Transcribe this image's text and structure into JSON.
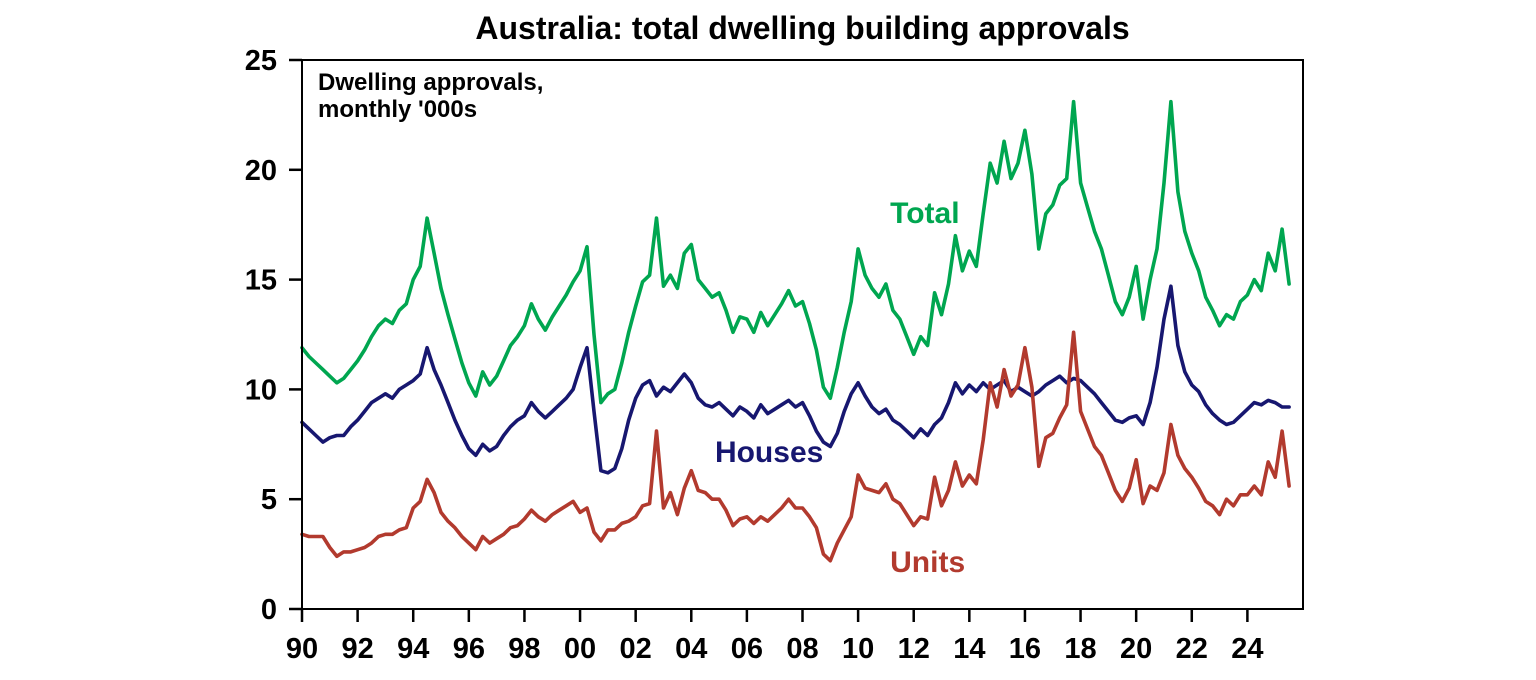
{
  "chart_data": {
    "type": "line",
    "title": "Australia: total dwelling building approvals",
    "annotation_lines": [
      "Dwelling approvals,",
      "monthly '000s"
    ],
    "grid": false,
    "legend_position": "inline-labels",
    "xlim": [
      1990.0,
      2026.0
    ],
    "ylim": [
      0,
      25
    ],
    "y_ticks": [
      0,
      5,
      10,
      15,
      20,
      25
    ],
    "x_ticks": [
      {
        "label": "90",
        "year": 1990
      },
      {
        "label": "92",
        "year": 1992
      },
      {
        "label": "94",
        "year": 1994
      },
      {
        "label": "96",
        "year": 1996
      },
      {
        "label": "98",
        "year": 1998
      },
      {
        "label": "00",
        "year": 2000
      },
      {
        "label": "02",
        "year": 2002
      },
      {
        "label": "04",
        "year": 2004
      },
      {
        "label": "06",
        "year": 2006
      },
      {
        "label": "08",
        "year": 2008
      },
      {
        "label": "10",
        "year": 2010
      },
      {
        "label": "12",
        "year": 2012
      },
      {
        "label": "14",
        "year": 2014
      },
      {
        "label": "16",
        "year": 2016
      },
      {
        "label": "18",
        "year": 2018
      },
      {
        "label": "20",
        "year": 2020
      },
      {
        "label": "22",
        "year": 2022
      },
      {
        "label": "24",
        "year": 2024
      }
    ],
    "x_start": 1990.0,
    "x_step": 0.25,
    "series": [
      {
        "name": "Total",
        "color": "#00A650",
        "label_x": 2012.4,
        "label_y": 18.0,
        "values": [
          11.9,
          11.5,
          11.2,
          10.9,
          10.6,
          10.3,
          10.5,
          10.9,
          11.3,
          11.8,
          12.4,
          12.9,
          13.2,
          13.0,
          13.6,
          13.9,
          15.0,
          15.6,
          17.8,
          16.2,
          14.6,
          13.4,
          12.3,
          11.2,
          10.3,
          9.7,
          10.8,
          10.2,
          10.6,
          11.3,
          12.0,
          12.4,
          12.9,
          13.9,
          13.2,
          12.7,
          13.3,
          13.8,
          14.3,
          14.9,
          15.4,
          16.5,
          12.5,
          9.4,
          9.8,
          10.0,
          11.2,
          12.6,
          13.8,
          14.9,
          15.2,
          17.8,
          14.7,
          15.2,
          14.6,
          16.2,
          16.6,
          15.0,
          14.6,
          14.2,
          14.4,
          13.6,
          12.6,
          13.3,
          13.2,
          12.6,
          13.5,
          12.9,
          13.4,
          13.9,
          14.5,
          13.8,
          14.0,
          13.0,
          11.8,
          10.1,
          9.6,
          11.0,
          12.6,
          14.0,
          16.4,
          15.2,
          14.6,
          14.2,
          14.8,
          13.6,
          13.2,
          12.4,
          11.6,
          12.4,
          12.0,
          14.4,
          13.4,
          14.8,
          17.0,
          15.4,
          16.3,
          15.6,
          18.0,
          20.3,
          19.4,
          21.3,
          19.6,
          20.3,
          21.8,
          19.8,
          16.4,
          18.0,
          18.4,
          19.3,
          19.6,
          23.1,
          19.4,
          18.3,
          17.2,
          16.4,
          15.2,
          14.0,
          13.4,
          14.2,
          15.6,
          13.2,
          15.0,
          16.4,
          19.4,
          23.1,
          19.0,
          17.2,
          16.2,
          15.4,
          14.2,
          13.6,
          12.9,
          13.4,
          13.2,
          14.0,
          14.3,
          15.0,
          14.5,
          16.2,
          15.4,
          17.3,
          14.8
        ]
      },
      {
        "name": "Houses",
        "color": "#171770",
        "label_x": 2006.8,
        "label_y": 7.1,
        "values": [
          8.5,
          8.2,
          7.9,
          7.6,
          7.8,
          7.9,
          7.9,
          8.3,
          8.6,
          9.0,
          9.4,
          9.6,
          9.8,
          9.6,
          10.0,
          10.2,
          10.4,
          10.7,
          11.9,
          10.9,
          10.2,
          9.4,
          8.6,
          7.9,
          7.3,
          7.0,
          7.5,
          7.2,
          7.4,
          7.9,
          8.3,
          8.6,
          8.8,
          9.4,
          9.0,
          8.7,
          9.0,
          9.3,
          9.6,
          10.0,
          11.0,
          11.9,
          9.0,
          6.3,
          6.2,
          6.4,
          7.3,
          8.6,
          9.6,
          10.2,
          10.4,
          9.7,
          10.1,
          9.9,
          10.3,
          10.7,
          10.3,
          9.6,
          9.3,
          9.2,
          9.4,
          9.1,
          8.8,
          9.2,
          9.0,
          8.7,
          9.3,
          8.9,
          9.1,
          9.3,
          9.5,
          9.2,
          9.4,
          8.8,
          8.1,
          7.6,
          7.4,
          8.0,
          9.0,
          9.8,
          10.3,
          9.7,
          9.2,
          8.9,
          9.1,
          8.6,
          8.4,
          8.1,
          7.8,
          8.2,
          7.9,
          8.4,
          8.7,
          9.4,
          10.3,
          9.8,
          10.2,
          9.9,
          10.3,
          10.0,
          10.2,
          10.4,
          9.9,
          10.1,
          9.9,
          9.7,
          9.9,
          10.2,
          10.4,
          10.6,
          10.3,
          10.5,
          10.4,
          10.1,
          9.8,
          9.4,
          9.0,
          8.6,
          8.5,
          8.7,
          8.8,
          8.4,
          9.4,
          11.0,
          13.2,
          14.7,
          12.0,
          10.8,
          10.2,
          9.9,
          9.3,
          8.9,
          8.6,
          8.4,
          8.5,
          8.8,
          9.1,
          9.4,
          9.3,
          9.5,
          9.4,
          9.2,
          9.2
        ]
      },
      {
        "name": "Units",
        "color": "#B23A2E",
        "label_x": 2012.5,
        "label_y": 2.1,
        "values": [
          3.4,
          3.3,
          3.3,
          3.3,
          2.8,
          2.4,
          2.6,
          2.6,
          2.7,
          2.8,
          3.0,
          3.3,
          3.4,
          3.4,
          3.6,
          3.7,
          4.6,
          4.9,
          5.9,
          5.3,
          4.4,
          4.0,
          3.7,
          3.3,
          3.0,
          2.7,
          3.3,
          3.0,
          3.2,
          3.4,
          3.7,
          3.8,
          4.1,
          4.5,
          4.2,
          4.0,
          4.3,
          4.5,
          4.7,
          4.9,
          4.4,
          4.6,
          3.5,
          3.1,
          3.6,
          3.6,
          3.9,
          4.0,
          4.2,
          4.7,
          4.8,
          8.1,
          4.6,
          5.3,
          4.3,
          5.5,
          6.3,
          5.4,
          5.3,
          5.0,
          5.0,
          4.5,
          3.8,
          4.1,
          4.2,
          3.9,
          4.2,
          4.0,
          4.3,
          4.6,
          5.0,
          4.6,
          4.6,
          4.2,
          3.7,
          2.5,
          2.2,
          3.0,
          3.6,
          4.2,
          6.1,
          5.5,
          5.4,
          5.3,
          5.7,
          5.0,
          4.8,
          4.3,
          3.8,
          4.2,
          4.1,
          6.0,
          4.7,
          5.4,
          6.7,
          5.6,
          6.1,
          5.7,
          7.7,
          10.3,
          9.2,
          10.9,
          9.7,
          10.2,
          11.9,
          10.1,
          6.5,
          7.8,
          8.0,
          8.7,
          9.3,
          12.6,
          9.0,
          8.2,
          7.4,
          7.0,
          6.2,
          5.4,
          4.9,
          5.5,
          6.8,
          4.8,
          5.6,
          5.4,
          6.2,
          8.4,
          7.0,
          6.4,
          6.0,
          5.5,
          4.9,
          4.7,
          4.3,
          5.0,
          4.7,
          5.2,
          5.2,
          5.6,
          5.2,
          6.7,
          6.0,
          8.1,
          5.6
        ]
      }
    ]
  }
}
